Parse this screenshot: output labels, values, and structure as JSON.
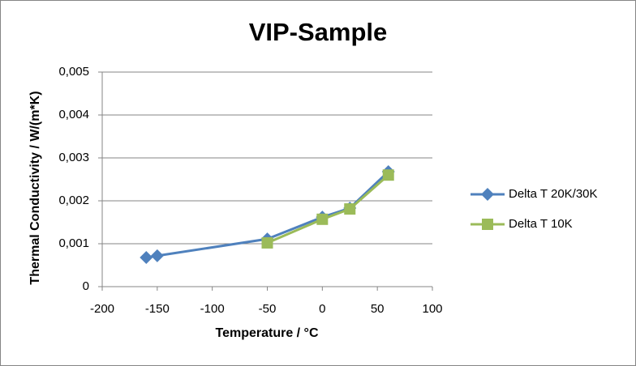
{
  "chart_data": {
    "type": "line",
    "title": "VIP-Sample",
    "x_label": "Temperature / °C",
    "y_label": "Thermal Conductivity / W/(m*K)",
    "xlim": [
      -200,
      100
    ],
    "xticks": [
      -200,
      -150,
      -100,
      -50,
      0,
      50,
      100
    ],
    "ylim": [
      0,
      0.005
    ],
    "yticks": [
      0,
      {
        "value": 0.001,
        "label": "0,001"
      },
      {
        "value": 0.002,
        "label": "0,002"
      },
      {
        "value": 0.003,
        "label": "0,003"
      },
      {
        "value": 0.004,
        "label": "0,004"
      },
      {
        "value": 0.005,
        "label": "0,005"
      }
    ],
    "grid": true,
    "legend": "right",
    "series": [
      {
        "name": "Delta T 20K/30K",
        "color": "#4f81bd",
        "marker": "diamond",
        "x": [
          -160,
          -150,
          -50,
          0,
          25,
          60
        ],
        "values": [
          0.00068,
          0.00072,
          0.00111,
          0.00162,
          0.00183,
          0.00268
        ]
      },
      {
        "name": "Delta T 10K",
        "color": "#9bbb59",
        "marker": "square",
        "x": [
          -50,
          0,
          25,
          60
        ],
        "values": [
          0.00102,
          0.00157,
          0.00181,
          0.0026
        ]
      }
    ]
  }
}
